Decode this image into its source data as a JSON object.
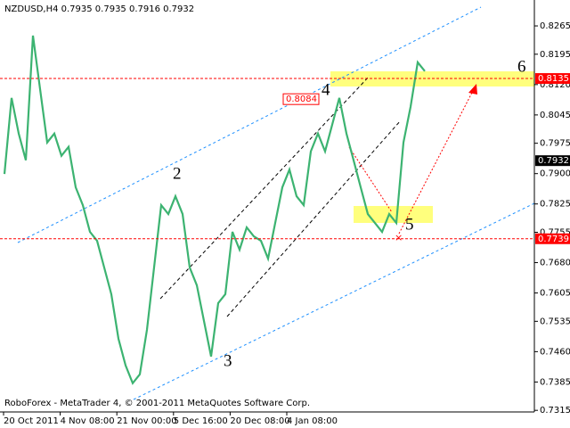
{
  "chart_data": {
    "type": "line",
    "title": "NZDUSD,H4  0.7935 0.7935 0.7916 0.7932",
    "footer": "RoboForex - MetaTrader 4, © 2001-2011 MetaQuotes Software Corp.",
    "x_labels": [
      "20 Oct 2011",
      "4 Nov 08:00",
      "21 Nov 00:00",
      "5 Dec 16:00",
      "20 Dec 08:00",
      "4 Jan 08:00"
    ],
    "series": [
      {
        "color": "#3cb371",
        "values": [
          0.7899,
          0.8087,
          0.7999,
          0.7933,
          0.8241,
          0.8109,
          0.7977,
          0.7999,
          0.7944,
          0.7966,
          0.7866,
          0.7822,
          0.7756,
          0.7734,
          0.7668,
          0.7602,
          0.7492,
          0.7426,
          0.7382,
          0.7404,
          0.7514,
          0.7668,
          0.7822,
          0.78,
          0.7844,
          0.78,
          0.7668,
          0.7624,
          0.7536,
          0.7448,
          0.758,
          0.7602,
          0.7756,
          0.7712,
          0.7767,
          0.7745,
          0.7734,
          0.769,
          0.7778,
          0.7866,
          0.791,
          0.7844,
          0.7822,
          0.7955,
          0.7999,
          0.7955,
          0.8021,
          0.8087,
          0.7999,
          0.7933,
          0.7866,
          0.78,
          0.7778,
          0.7756,
          0.78,
          0.7778,
          0.7977,
          0.8065,
          0.8175,
          0.8153
        ]
      }
    ],
    "ylim": [
      0.7311,
      0.8329
    ],
    "yticks": [
      0.8265,
      0.8195,
      {
        "value": 0.812,
        "label": "0.8120"
      },
      0.8045,
      0.7975,
      {
        "value": 0.79,
        "label": "0.7900"
      },
      0.7825,
      0.7755,
      {
        "value": 0.768,
        "label": "0.7680"
      },
      0.7605,
      0.7535,
      {
        "value": 0.746,
        "label": "0.7460"
      },
      0.7385,
      0.7315
    ],
    "levels": [
      {
        "value": 0.8135,
        "color": "#ff0000"
      },
      {
        "value": 0.7932,
        "color": "#000000"
      },
      {
        "value": 0.7739,
        "color": "#ff0000"
      }
    ],
    "marker_value": 0.8084,
    "wave_labels": [
      "2",
      "3",
      "4",
      "5",
      "6"
    ]
  }
}
